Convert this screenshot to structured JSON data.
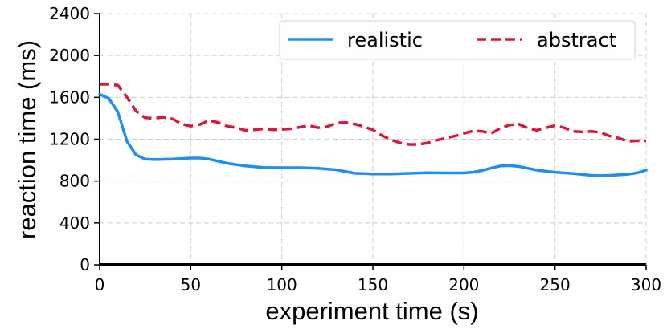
{
  "chart_data": {
    "type": "line",
    "title": "",
    "xlabel": "experiment time (s)",
    "ylabel": "reaction time (ms)",
    "xlim": [
      0,
      300
    ],
    "ylim": [
      0,
      2400
    ],
    "xticks": [
      0,
      50,
      100,
      150,
      200,
      250,
      300
    ],
    "yticks": [
      0,
      400,
      800,
      1200,
      1600,
      2000,
      2400
    ],
    "grid": true,
    "legend": "top-right",
    "series": [
      {
        "name": "realistic",
        "color": "#1f8ef1",
        "style": "solid",
        "x": [
          0,
          5,
          10,
          15,
          20,
          25,
          30,
          40,
          50,
          55,
          60,
          70,
          80,
          90,
          100,
          110,
          120,
          130,
          140,
          150,
          160,
          170,
          180,
          190,
          200,
          205,
          210,
          215,
          220,
          225,
          230,
          240,
          250,
          260,
          270,
          275,
          280,
          290,
          295,
          300
        ],
        "y": [
          1630,
          1590,
          1460,
          1180,
          1050,
          1010,
          1005,
          1010,
          1020,
          1020,
          1010,
          970,
          945,
          930,
          928,
          928,
          922,
          908,
          875,
          868,
          868,
          874,
          880,
          878,
          878,
          885,
          902,
          925,
          945,
          948,
          940,
          905,
          885,
          872,
          855,
          852,
          855,
          865,
          878,
          905
        ]
      },
      {
        "name": "abstract",
        "color": "#d7193f",
        "style": "dashed",
        "x": [
          0,
          5,
          10,
          15,
          20,
          25,
          30,
          35,
          40,
          45,
          50,
          55,
          60,
          65,
          70,
          75,
          80,
          85,
          90,
          95,
          100,
          105,
          110,
          115,
          120,
          125,
          130,
          135,
          140,
          145,
          150,
          155,
          160,
          165,
          170,
          175,
          180,
          185,
          190,
          195,
          200,
          205,
          210,
          215,
          220,
          225,
          230,
          235,
          240,
          245,
          250,
          255,
          260,
          265,
          270,
          275,
          280,
          285,
          290,
          295,
          300
        ],
        "y": [
          1725,
          1725,
          1715,
          1600,
          1470,
          1405,
          1400,
          1410,
          1395,
          1345,
          1325,
          1340,
          1380,
          1360,
          1325,
          1310,
          1285,
          1290,
          1300,
          1290,
          1295,
          1300,
          1315,
          1330,
          1310,
          1320,
          1355,
          1360,
          1345,
          1320,
          1290,
          1235,
          1195,
          1165,
          1150,
          1150,
          1165,
          1190,
          1210,
          1230,
          1255,
          1280,
          1275,
          1255,
          1305,
          1335,
          1345,
          1305,
          1285,
          1310,
          1330,
          1310,
          1275,
          1270,
          1275,
          1265,
          1230,
          1210,
          1180,
          1185,
          1185
        ]
      }
    ]
  }
}
